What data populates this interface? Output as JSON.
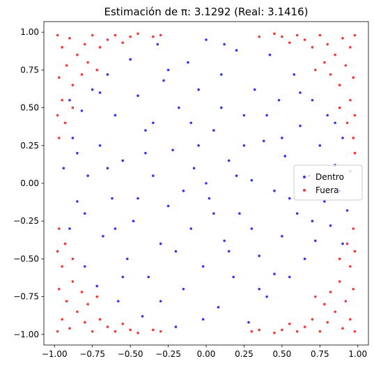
{
  "chart_data": {
    "type": "scatter",
    "title": "Estimación de π: 3.1292 (Real: 3.1416)",
    "xlabel": "",
    "ylabel": "",
    "xlim": [
      -1.07,
      1.07
    ],
    "ylim": [
      -1.07,
      1.07
    ],
    "xticks": [
      -1.0,
      -0.75,
      -0.5,
      -0.25,
      0.0,
      0.25,
      0.5,
      0.75,
      1.0
    ],
    "yticks": [
      -1.0,
      -0.75,
      -0.5,
      -0.25,
      0.0,
      0.25,
      0.5,
      0.75,
      1.0
    ],
    "xtick_labels": [
      "−1.00",
      "−0.75",
      "−0.50",
      "−0.25",
      "0.00",
      "0.25",
      "0.50",
      "0.75",
      "1.00"
    ],
    "ytick_labels": [
      "−1.00",
      "−0.75",
      "−0.50",
      "−0.25",
      "0.00",
      "0.25",
      "0.50",
      "0.75",
      "1.00"
    ],
    "grid": false,
    "legend_position": "center-right",
    "series": [
      {
        "name": "Dentro",
        "color": "#0000ff",
        "points": [
          [
            -0.94,
            0.1
          ],
          [
            -0.9,
            -0.3
          ],
          [
            -0.88,
            0.3
          ],
          [
            -0.85,
            -0.12
          ],
          [
            -0.82,
            0.48
          ],
          [
            -0.8,
            -0.55
          ],
          [
            -0.78,
            0.05
          ],
          [
            -0.75,
            0.62
          ],
          [
            -0.72,
            -0.68
          ],
          [
            -0.7,
            0.25
          ],
          [
            -0.68,
            -0.35
          ],
          [
            -0.65,
            0.72
          ],
          [
            -0.62,
            -0.1
          ],
          [
            -0.6,
            0.45
          ],
          [
            -0.58,
            -0.78
          ],
          [
            -0.55,
            0.15
          ],
          [
            -0.52,
            -0.5
          ],
          [
            -0.5,
            0.82
          ],
          [
            -0.48,
            -0.25
          ],
          [
            -0.45,
            0.58
          ],
          [
            -0.42,
            -0.88
          ],
          [
            -0.4,
            0.35
          ],
          [
            -0.38,
            -0.62
          ],
          [
            -0.35,
            0.05
          ],
          [
            -0.32,
            0.92
          ],
          [
            -0.3,
            -0.4
          ],
          [
            -0.28,
            0.68
          ],
          [
            -0.25,
            -0.15
          ],
          [
            -0.22,
            0.22
          ],
          [
            -0.2,
            -0.95
          ],
          [
            -0.18,
            0.5
          ],
          [
            -0.15,
            -0.7
          ],
          [
            -0.12,
            0.8
          ],
          [
            -0.1,
            -0.3
          ],
          [
            -0.08,
            0.1
          ],
          [
            -0.05,
            0.62
          ],
          [
            -0.02,
            -0.55
          ],
          [
            0.0,
            0.95
          ],
          [
            0.02,
            -0.1
          ],
          [
            0.05,
            0.35
          ],
          [
            0.08,
            -0.82
          ],
          [
            0.1,
            0.72
          ],
          [
            0.12,
            -0.38
          ],
          [
            0.15,
            0.15
          ],
          [
            0.18,
            -0.62
          ],
          [
            0.2,
            0.88
          ],
          [
            0.22,
            -0.2
          ],
          [
            0.25,
            0.45
          ],
          [
            0.28,
            -0.92
          ],
          [
            0.3,
            0.02
          ],
          [
            0.32,
            0.62
          ],
          [
            0.35,
            -0.48
          ],
          [
            0.38,
            0.28
          ],
          [
            0.4,
            -0.75
          ],
          [
            0.42,
            0.85
          ],
          [
            0.45,
            -0.05
          ],
          [
            0.48,
            0.55
          ],
          [
            0.5,
            -0.35
          ],
          [
            0.52,
            0.18
          ],
          [
            0.55,
            -0.62
          ],
          [
            0.58,
            0.72
          ],
          [
            0.6,
            -0.2
          ],
          [
            0.62,
            0.38
          ],
          [
            0.65,
            -0.5
          ],
          [
            0.68,
            0.05
          ],
          [
            0.7,
            0.55
          ],
          [
            0.72,
            -0.38
          ],
          [
            0.75,
            0.25
          ],
          [
            0.78,
            -0.12
          ],
          [
            0.8,
            0.45
          ],
          [
            0.82,
            -0.28
          ],
          [
            0.85,
            0.12
          ],
          [
            0.88,
            -0.05
          ],
          [
            0.9,
            0.3
          ],
          [
            0.93,
            -0.18
          ],
          [
            0.95,
            0.08
          ],
          [
            -0.6,
            -0.3
          ],
          [
            -0.35,
            0.4
          ],
          [
            0.15,
            -0.45
          ],
          [
            0.4,
            0.45
          ],
          [
            -0.15,
            -0.05
          ],
          [
            0.25,
            0.25
          ],
          [
            -0.45,
            -0.1
          ],
          [
            0.55,
            -0.1
          ],
          [
            -0.05,
            0.25
          ],
          [
            0.05,
            -0.2
          ],
          [
            -0.25,
            0.75
          ],
          [
            0.35,
            -0.7
          ],
          [
            -0.7,
            0.6
          ],
          [
            0.62,
            0.6
          ],
          [
            -0.55,
            -0.62
          ],
          [
            0.45,
            -0.6
          ],
          [
            -0.3,
            -0.78
          ],
          [
            0.1,
            0.5
          ],
          [
            -0.1,
            0.4
          ],
          [
            0.3,
            -0.3
          ],
          [
            -0.4,
            0.2
          ],
          [
            0.2,
            0.05
          ],
          [
            -0.2,
            -0.45
          ],
          [
            0.5,
            0.3
          ],
          [
            -0.65,
            0.1
          ],
          [
            0.7,
            -0.25
          ],
          [
            -0.8,
            -0.2
          ],
          [
            0.85,
            0.4
          ],
          [
            -0.9,
            0.55
          ],
          [
            0.9,
            -0.4
          ],
          [
            0.0,
            0.0
          ],
          [
            -0.02,
            -0.9
          ],
          [
            0.12,
            0.92
          ],
          [
            -0.85,
            0.2
          ]
        ]
      },
      {
        "name": "Fuera",
        "color": "#ff0000",
        "points": [
          [
            -0.98,
            0.98
          ],
          [
            -0.95,
            0.9
          ],
          [
            -0.9,
            0.96
          ],
          [
            -0.85,
            0.85
          ],
          [
            -0.92,
            0.78
          ],
          [
            -0.8,
            0.92
          ],
          [
            -0.97,
            0.7
          ],
          [
            -0.75,
            0.98
          ],
          [
            -0.88,
            0.65
          ],
          [
            -0.7,
            0.9
          ],
          [
            -0.95,
            0.55
          ],
          [
            -0.82,
            0.72
          ],
          [
            -0.65,
            0.95
          ],
          [
            -0.78,
            0.8
          ],
          [
            -0.98,
            0.45
          ],
          [
            -0.6,
            0.98
          ],
          [
            -0.93,
            0.4
          ],
          [
            -0.55,
            0.93
          ],
          [
            -0.5,
            0.97
          ],
          [
            -0.45,
            0.99
          ],
          [
            -0.97,
            0.3
          ],
          [
            -0.72,
            0.75
          ],
          [
            -0.35,
            0.97
          ],
          [
            -0.3,
            0.98
          ],
          [
            -0.88,
            0.5
          ],
          [
            0.98,
            0.98
          ],
          [
            0.95,
            0.9
          ],
          [
            0.9,
            0.96
          ],
          [
            0.85,
            0.85
          ],
          [
            0.92,
            0.78
          ],
          [
            0.8,
            0.92
          ],
          [
            0.97,
            0.7
          ],
          [
            0.75,
            0.98
          ],
          [
            0.88,
            0.65
          ],
          [
            0.7,
            0.9
          ],
          [
            0.95,
            0.55
          ],
          [
            0.82,
            0.72
          ],
          [
            0.65,
            0.95
          ],
          [
            0.78,
            0.8
          ],
          [
            0.98,
            0.45
          ],
          [
            0.6,
            0.98
          ],
          [
            0.93,
            0.4
          ],
          [
            0.55,
            0.93
          ],
          [
            0.5,
            0.97
          ],
          [
            0.45,
            0.99
          ],
          [
            0.97,
            0.3
          ],
          [
            0.72,
            0.75
          ],
          [
            0.35,
            0.97
          ],
          [
            0.98,
            0.2
          ],
          [
            0.88,
            0.5
          ],
          [
            -0.98,
            -0.98
          ],
          [
            -0.95,
            -0.9
          ],
          [
            -0.9,
            -0.96
          ],
          [
            -0.85,
            -0.85
          ],
          [
            -0.92,
            -0.78
          ],
          [
            -0.8,
            -0.92
          ],
          [
            -0.97,
            -0.7
          ],
          [
            -0.75,
            -0.98
          ],
          [
            -0.88,
            -0.65
          ],
          [
            -0.7,
            -0.9
          ],
          [
            -0.95,
            -0.55
          ],
          [
            -0.82,
            -0.72
          ],
          [
            -0.65,
            -0.95
          ],
          [
            -0.78,
            -0.8
          ],
          [
            -0.98,
            -0.45
          ],
          [
            -0.6,
            -0.98
          ],
          [
            -0.93,
            -0.4
          ],
          [
            -0.55,
            -0.93
          ],
          [
            -0.5,
            -0.97
          ],
          [
            -0.45,
            -0.99
          ],
          [
            -0.97,
            -0.3
          ],
          [
            -0.72,
            -0.75
          ],
          [
            -0.35,
            -0.97
          ],
          [
            -0.3,
            -0.98
          ],
          [
            -0.88,
            -0.5
          ],
          [
            0.98,
            -0.98
          ],
          [
            0.95,
            -0.9
          ],
          [
            0.9,
            -0.96
          ],
          [
            0.85,
            -0.85
          ],
          [
            0.92,
            -0.78
          ],
          [
            0.8,
            -0.92
          ],
          [
            0.97,
            -0.7
          ],
          [
            0.75,
            -0.98
          ],
          [
            0.88,
            -0.65
          ],
          [
            0.7,
            -0.9
          ],
          [
            0.95,
            -0.55
          ],
          [
            0.82,
            -0.72
          ],
          [
            0.65,
            -0.95
          ],
          [
            0.78,
            -0.8
          ],
          [
            0.98,
            -0.45
          ],
          [
            0.6,
            -0.98
          ],
          [
            0.93,
            -0.4
          ],
          [
            0.55,
            -0.93
          ],
          [
            0.5,
            -0.97
          ],
          [
            0.45,
            -0.99
          ],
          [
            0.97,
            -0.3
          ],
          [
            0.72,
            -0.75
          ],
          [
            0.35,
            -0.97
          ],
          [
            0.3,
            -0.98
          ],
          [
            0.88,
            -0.5
          ]
        ]
      }
    ]
  }
}
